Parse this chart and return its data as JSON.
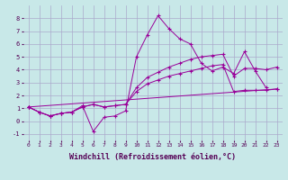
{
  "background_color": "#c8e8e8",
  "grid_color": "#aaaacc",
  "line_color": "#990099",
  "marker_color": "#990099",
  "xlabel": "Windchill (Refroidissement éolien,°C)",
  "xlabel_fontsize": 6,
  "xlim": [
    -0.5,
    23.5
  ],
  "ylim": [
    -1.5,
    9.0
  ],
  "xticks": [
    0,
    1,
    2,
    3,
    4,
    5,
    6,
    7,
    8,
    9,
    10,
    11,
    12,
    13,
    14,
    15,
    16,
    17,
    18,
    19,
    20,
    21,
    22,
    23
  ],
  "yticks": [
    -1,
    0,
    1,
    2,
    3,
    4,
    5,
    6,
    7,
    8
  ],
  "series": [
    {
      "x": [
        0,
        1,
        2,
        3,
        4,
        5,
        6,
        7,
        8,
        9,
        10,
        11,
        12,
        13,
        14,
        15,
        16,
        17,
        18,
        19,
        20,
        21,
        22
      ],
      "y": [
        1.1,
        0.7,
        0.4,
        0.6,
        0.7,
        1.2,
        -0.8,
        0.3,
        0.4,
        0.8,
        5.0,
        6.7,
        8.2,
        7.2,
        6.4,
        6.0,
        4.5,
        3.9,
        4.2,
        3.7,
        5.4,
        3.9,
        2.6
      ]
    },
    {
      "x": [
        0,
        1,
        2,
        3,
        4,
        5,
        6,
        7,
        8,
        9,
        10,
        11,
        12,
        13,
        14,
        15,
        16,
        17,
        18,
        19,
        20,
        21,
        22,
        23
      ],
      "y": [
        1.1,
        0.7,
        0.4,
        0.6,
        0.7,
        1.1,
        1.3,
        1.1,
        1.2,
        1.3,
        2.3,
        2.9,
        3.2,
        3.5,
        3.7,
        3.9,
        4.1,
        4.3,
        4.4,
        2.3,
        2.4,
        2.4,
        2.4,
        2.5
      ]
    },
    {
      "x": [
        0,
        1,
        2,
        3,
        4,
        5,
        6,
        7,
        8,
        9,
        10,
        11,
        12,
        13,
        14,
        15,
        16,
        17,
        18,
        19,
        20,
        21,
        22,
        23
      ],
      "y": [
        1.1,
        0.7,
        0.4,
        0.6,
        0.7,
        1.1,
        1.3,
        1.1,
        1.2,
        1.3,
        2.6,
        3.4,
        3.8,
        4.2,
        4.5,
        4.8,
        5.0,
        5.1,
        5.2,
        3.5,
        4.1,
        4.1,
        4.0,
        4.2
      ]
    },
    {
      "x": [
        0,
        23
      ],
      "y": [
        1.1,
        2.5
      ]
    }
  ]
}
